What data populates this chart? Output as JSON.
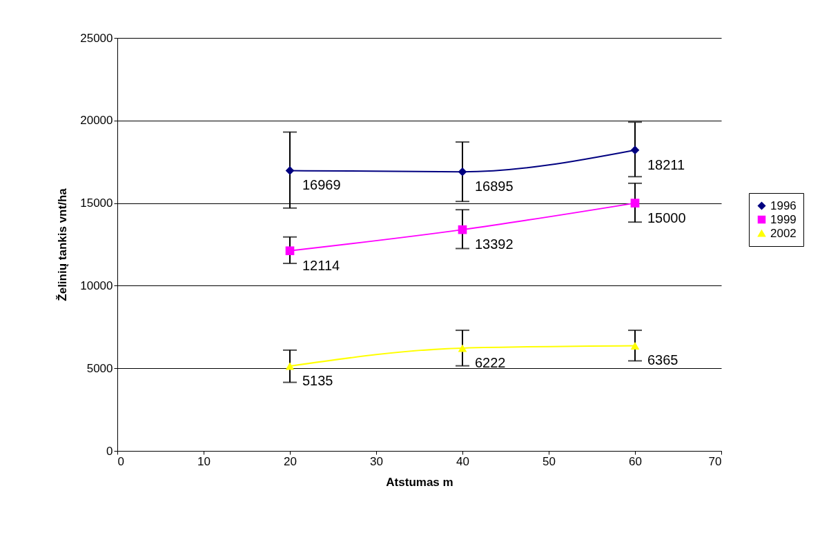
{
  "chart_data": {
    "type": "line",
    "xlabel": "Atstumas m",
    "ylabel": "Želinių tankis vnt/ha",
    "x": [
      20,
      40,
      60
    ],
    "series": [
      {
        "name": "1996",
        "color": "#000080",
        "marker": "diamond",
        "values": [
          16969,
          16895,
          18211
        ],
        "errors": [
          [
            14700,
            19300
          ],
          [
            15100,
            18700
          ],
          [
            16600,
            19900
          ]
        ]
      },
      {
        "name": "1999",
        "color": "#ff00ff",
        "marker": "square",
        "values": [
          12114,
          13392,
          15000
        ],
        "errors": [
          [
            11350,
            12950
          ],
          [
            12250,
            14600
          ],
          [
            13850,
            16200
          ]
        ]
      },
      {
        "name": "2002",
        "color": "#ffff00",
        "marker": "triangle",
        "values": [
          5135,
          6222,
          6365
        ],
        "errors": [
          [
            4150,
            6100
          ],
          [
            5150,
            7300
          ],
          [
            5450,
            7300
          ]
        ]
      }
    ],
    "xlim": [
      0,
      70
    ],
    "xticks": [
      0,
      10,
      20,
      30,
      40,
      50,
      60,
      70
    ],
    "ylim": [
      0,
      25000
    ],
    "yticks": [
      0,
      5000,
      10000,
      15000,
      20000,
      25000
    ],
    "grid": "y",
    "legend": "right",
    "data_labels": true
  }
}
